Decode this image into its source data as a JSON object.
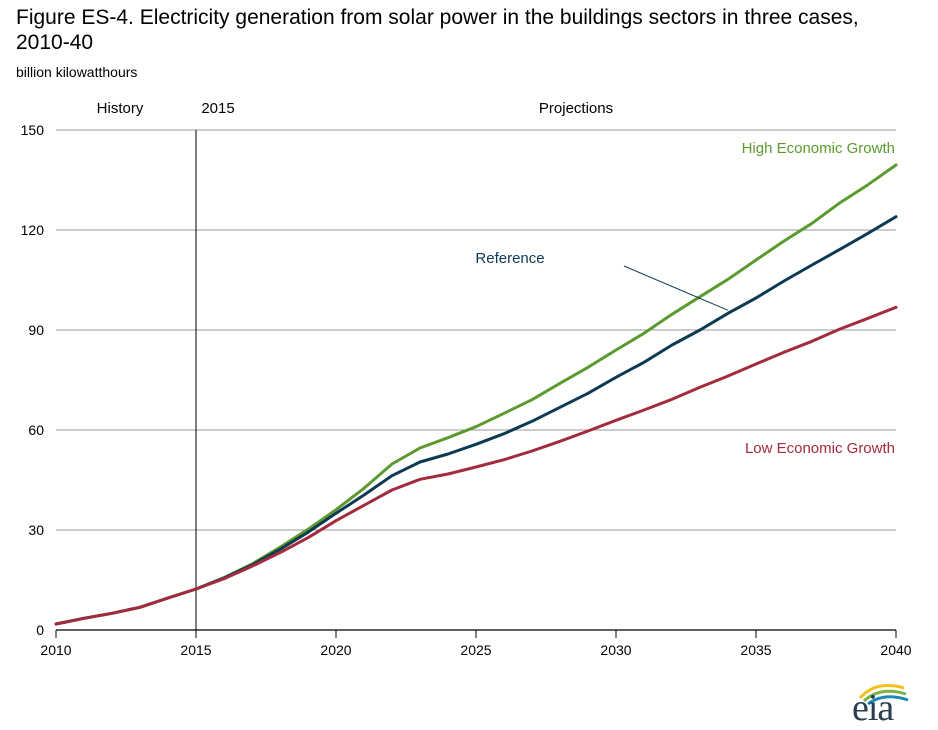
{
  "title": "Figure ES-4. Electricity generation from solar power in the buildings sectors in three cases, 2010-40",
  "subtitle": "billion kilowatthours",
  "logo_text": "eia",
  "chart_data": {
    "type": "line",
    "title": "Figure ES-4. Electricity generation from solar power in the buildings sectors in three cases, 2010-40",
    "ylabel": "billion kilowatthours",
    "xlim": [
      2010,
      2040
    ],
    "ylim": [
      0,
      150
    ],
    "x_ticks": [
      2010,
      2015,
      2020,
      2025,
      2030,
      2035,
      2040
    ],
    "y_ticks": [
      0,
      30,
      60,
      90,
      120,
      150
    ],
    "grid": "horizontal",
    "regions": {
      "history_label": "History",
      "divider_year": 2015,
      "divider_label": "2015",
      "projections_label": "Projections"
    },
    "x": [
      2010,
      2011,
      2012,
      2013,
      2014,
      2015,
      2016,
      2017,
      2018,
      2019,
      2020,
      2021,
      2022,
      2023,
      2024,
      2025,
      2026,
      2027,
      2028,
      2029,
      2030,
      2031,
      2032,
      2033,
      2034,
      2035,
      2036,
      2037,
      2038,
      2039,
      2040
    ],
    "series": [
      {
        "name": "High Economic Growth",
        "color": "#5b9a2e",
        "values": [
          1.8,
          3.5,
          5.0,
          6.8,
          9.6,
          12.3,
          15.7,
          19.8,
          24.8,
          30.2,
          36.1,
          42.5,
          49.8,
          54.6,
          57.7,
          61.0,
          65.0,
          69.1,
          74.0,
          78.8,
          84.0,
          89.0,
          94.7,
          100.0,
          105.2,
          111.0,
          116.7,
          122.0,
          128.2,
          133.6,
          139.5
        ]
      },
      {
        "name": "Reference",
        "color": "#0d3a53",
        "values": [
          1.8,
          3.5,
          5.0,
          6.8,
          9.6,
          12.3,
          15.6,
          19.5,
          24.2,
          29.3,
          35.0,
          40.5,
          46.3,
          50.4,
          52.8,
          55.7,
          58.9,
          62.6,
          66.8,
          71.0,
          75.8,
          80.3,
          85.5,
          90.0,
          95.0,
          99.6,
          104.7,
          109.5,
          114.2,
          119.0,
          124.0
        ]
      },
      {
        "name": "Low Economic Growth",
        "color": "#a32b3e",
        "values": [
          1.8,
          3.5,
          5.0,
          6.8,
          9.6,
          12.3,
          15.4,
          19.1,
          23.2,
          27.7,
          32.8,
          37.4,
          42.0,
          45.2,
          46.8,
          48.9,
          51.1,
          53.7,
          56.6,
          59.7,
          62.9,
          66.0,
          69.2,
          72.8,
          76.2,
          79.8,
          83.3,
          86.6,
          90.3,
          93.5,
          96.8
        ]
      }
    ],
    "annotations": [
      {
        "text": "High Economic Growth",
        "series": 0
      },
      {
        "text": "Reference",
        "series": 1
      },
      {
        "text": "Low Economic Growth",
        "series": 2
      }
    ]
  }
}
